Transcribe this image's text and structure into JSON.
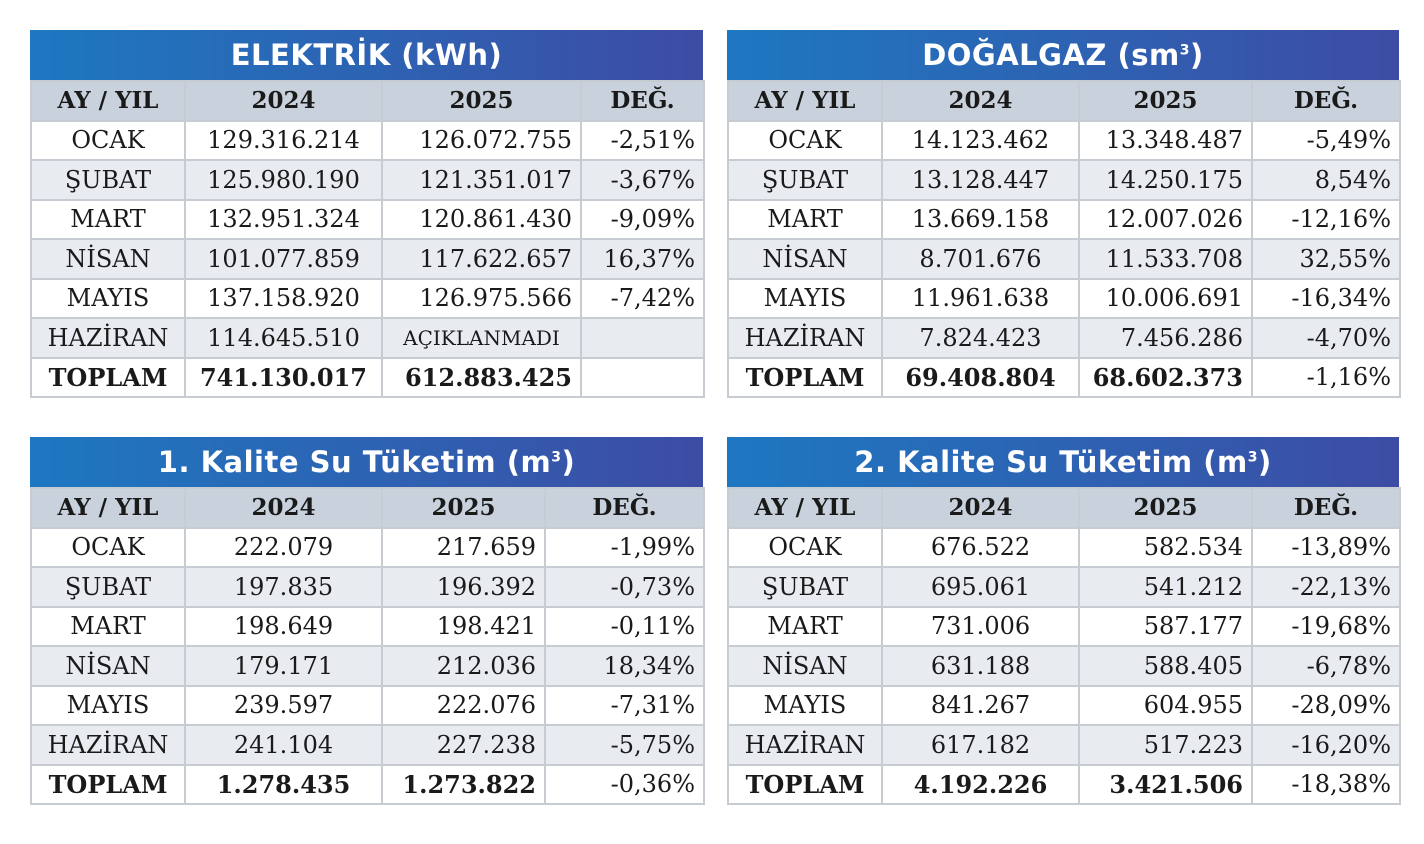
{
  "tables": {
    "elec": {
      "title": "ELEKTRİK (kWh)",
      "headers": [
        "AY / YIL",
        "2024",
        "2025",
        "DEĞ."
      ],
      "rows": [
        {
          "month": "OCAK",
          "y2024": "129.316.214",
          "y2025": "126.072.755",
          "change": "-2,51%"
        },
        {
          "month": "ŞUBAT",
          "y2024": "125.980.190",
          "y2025": "121.351.017",
          "change": "-3,67%"
        },
        {
          "month": "MART",
          "y2024": "132.951.324",
          "y2025": "120.861.430",
          "change": "-9,09%"
        },
        {
          "month": "NİSAN",
          "y2024": "101.077.859",
          "y2025": "117.622.657",
          "change": "16,37%"
        },
        {
          "month": "MAYIS",
          "y2024": "137.158.920",
          "y2025": "126.975.566",
          "change": "-7,42%"
        },
        {
          "month": "HAZİRAN",
          "y2024": "114.645.510",
          "y2025": "AÇIKLANMADI",
          "change": ""
        }
      ],
      "total": {
        "label": "TOPLAM",
        "y2024": "741.130.017",
        "y2025": "612.883.425",
        "change": ""
      }
    },
    "gas": {
      "title_main": "DOĞALGAZ (sm",
      "title_sup": "3",
      "title_end": ")",
      "headers": [
        "AY / YIL",
        "2024",
        "2025",
        "DEĞ."
      ],
      "rows": [
        {
          "month": "OCAK",
          "y2024": "14.123.462",
          "y2025": "13.348.487",
          "change": "-5,49%"
        },
        {
          "month": "ŞUBAT",
          "y2024": "13.128.447",
          "y2025": "14.250.175",
          "change": "8,54%"
        },
        {
          "month": "MART",
          "y2024": "13.669.158",
          "y2025": "12.007.026",
          "change": "-12,16%"
        },
        {
          "month": "NİSAN",
          "y2024": "8.701.676",
          "y2025": "11.533.708",
          "change": "32,55%"
        },
        {
          "month": "MAYIS",
          "y2024": "11.961.638",
          "y2025": "10.006.691",
          "change": "-16,34%"
        },
        {
          "month": "HAZİRAN",
          "y2024": "7.824.423",
          "y2025": "7.456.286",
          "change": "-4,70%"
        }
      ],
      "total": {
        "label": "TOPLAM",
        "y2024": "69.408.804",
        "y2025": "68.602.373",
        "change": "-1,16%"
      }
    },
    "water1": {
      "title_main": "1. Kalite Su Tüketim (m",
      "title_sup": "3",
      "title_end": ")",
      "headers": [
        "AY / YIL",
        "2024",
        "2025",
        "DEĞ."
      ],
      "rows": [
        {
          "month": "OCAK",
          "y2024": "222.079",
          "y2025": "217.659",
          "change": "-1,99%"
        },
        {
          "month": "ŞUBAT",
          "y2024": "197.835",
          "y2025": "196.392",
          "change": "-0,73%"
        },
        {
          "month": "MART",
          "y2024": "198.649",
          "y2025": "198.421",
          "change": "-0,11%"
        },
        {
          "month": "NİSAN",
          "y2024": "179.171",
          "y2025": "212.036",
          "change": "18,34%"
        },
        {
          "month": "MAYIS",
          "y2024": "239.597",
          "y2025": "222.076",
          "change": "-7,31%"
        },
        {
          "month": "HAZİRAN",
          "y2024": "241.104",
          "y2025": "227.238",
          "change": "-5,75%"
        }
      ],
      "total": {
        "label": "TOPLAM",
        "y2024": "1.278.435",
        "y2025": "1.273.822",
        "change": "-0,36%"
      }
    },
    "water2": {
      "title_main": "2. Kalite Su Tüketim (m",
      "title_sup": "3",
      "title_end": ")",
      "headers": [
        "AY / YIL",
        "2024",
        "2025",
        "DEĞ."
      ],
      "rows": [
        {
          "month": "OCAK",
          "y2024": "676.522",
          "y2025": "582.534",
          "change": "-13,89%"
        },
        {
          "month": "ŞUBAT",
          "y2024": "695.061",
          "y2025": "541.212",
          "change": "-22,13%"
        },
        {
          "month": "MART",
          "y2024": "731.006",
          "y2025": "587.177",
          "change": "-19,68%"
        },
        {
          "month": "NİSAN",
          "y2024": "631.188",
          "y2025": "588.405",
          "change": "-6,78%"
        },
        {
          "month": "MAYIS",
          "y2024": "841.267",
          "y2025": "604.955",
          "change": "-28,09%"
        },
        {
          "month": "HAZİRAN",
          "y2024": "617.182",
          "y2025": "517.223",
          "change": "-16,20%"
        }
      ],
      "total": {
        "label": "TOPLAM",
        "y2024": "4.192.226",
        "y2025": "3.421.506",
        "change": "-18,38%"
      }
    }
  },
  "colors": {
    "title_gradient_start": "#1d78c1",
    "title_gradient_end": "#3d4ca4",
    "header_bg": "#c9d2dc",
    "stripe_bg": "#e8ecf0"
  }
}
